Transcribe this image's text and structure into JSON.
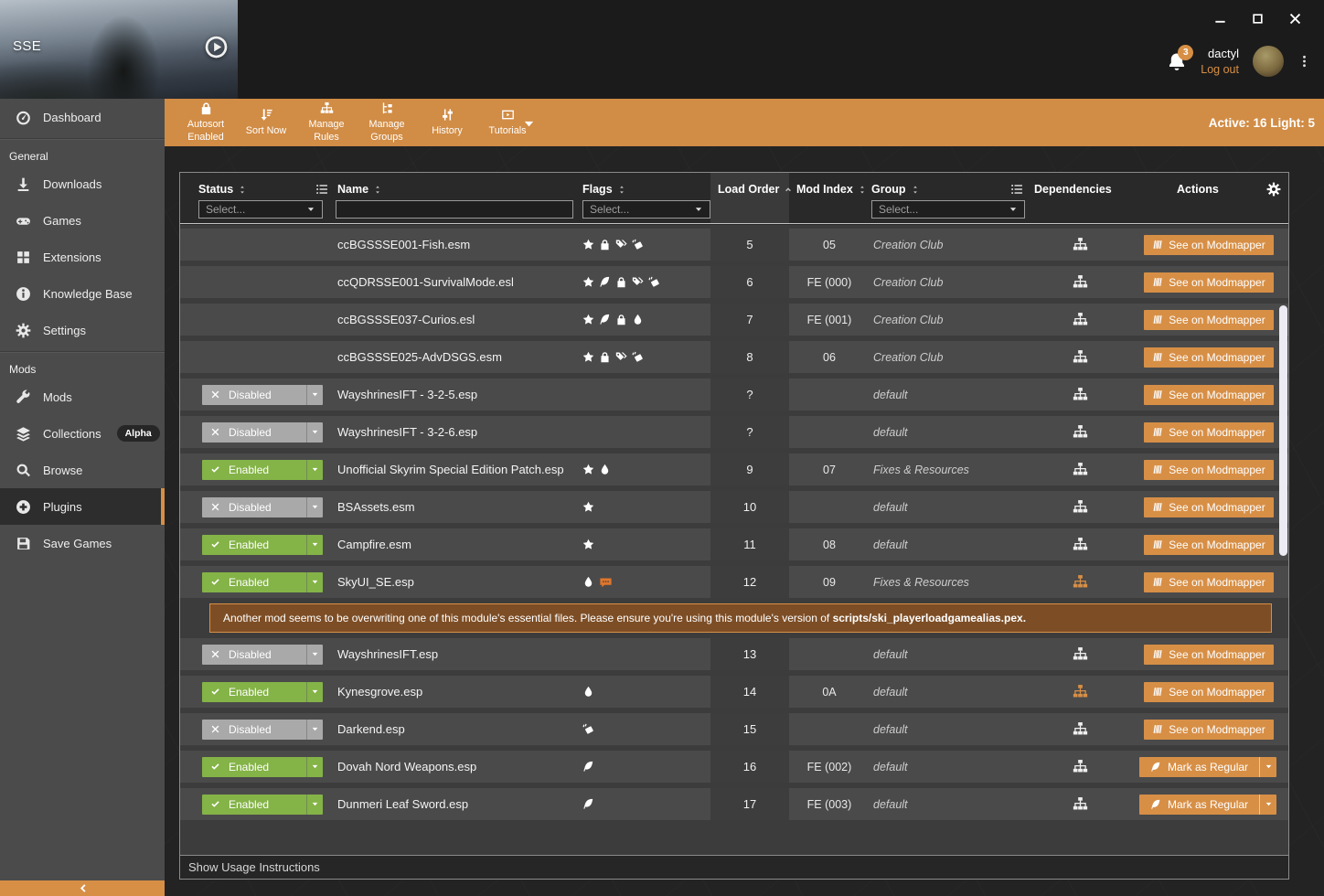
{
  "topbar": {
    "game_label": "SSE",
    "user_name": "dactyl",
    "logout_label": "Log out",
    "notification_count": "3",
    "window_controls": [
      "minimize-icon",
      "maximize-icon",
      "close-icon"
    ],
    "menu_icon": "kebab-menu-icon",
    "play_icon": "play-icon",
    "bell_icon": "bell-icon"
  },
  "toolbar": {
    "status_text": "Active: 16 Light: 5",
    "buttons": [
      {
        "icon": "lock-icon",
        "label": "Autosort Enabled",
        "caret": false
      },
      {
        "icon": "sort-amount-icon",
        "label": "Sort Now",
        "caret": false
      },
      {
        "icon": "sitemap-icon",
        "label": "Manage Rules",
        "caret": false
      },
      {
        "icon": "groups-icon",
        "label": "Manage Groups",
        "caret": false
      },
      {
        "icon": "sliders-icon",
        "label": "History",
        "caret": false
      },
      {
        "icon": "video-icon",
        "label": "Tutorials",
        "caret": true
      }
    ]
  },
  "sidebar": {
    "sections": [
      {
        "label": "",
        "items": [
          {
            "icon": "dashboard-icon",
            "label": "Dashboard",
            "active": false,
            "badge": ""
          }
        ]
      },
      {
        "label": "General",
        "items": [
          {
            "icon": "download-icon",
            "label": "Downloads",
            "active": false,
            "badge": ""
          },
          {
            "icon": "gamepad-icon",
            "label": "Games",
            "active": false,
            "badge": ""
          },
          {
            "icon": "extensions-icon",
            "label": "Extensions",
            "active": false,
            "badge": ""
          },
          {
            "icon": "info-icon",
            "label": "Knowledge Base",
            "active": false,
            "badge": ""
          },
          {
            "icon": "gear-icon",
            "label": "Settings",
            "active": false,
            "badge": ""
          }
        ]
      },
      {
        "label": "Mods",
        "items": [
          {
            "icon": "wrench-icon",
            "label": "Mods",
            "active": false,
            "badge": ""
          },
          {
            "icon": "layers-icon",
            "label": "Collections",
            "active": false,
            "badge": "Alpha"
          },
          {
            "icon": "search-icon",
            "label": "Browse",
            "active": false,
            "badge": ""
          },
          {
            "icon": "plus-circle-icon",
            "label": "Plugins",
            "active": true,
            "badge": ""
          },
          {
            "icon": "save-icon",
            "label": "Save Games",
            "active": false,
            "badge": ""
          }
        ]
      }
    ]
  },
  "table": {
    "headers": {
      "status": "Status",
      "name": "Name",
      "flags": "Flags",
      "load_order": "Load Order",
      "mod_index": "Mod Index",
      "group": "Group",
      "dependencies": "Dependencies",
      "actions": "Actions"
    },
    "filters": {
      "status_placeholder": "Select...",
      "name_value": "",
      "flags_placeholder": "Select...",
      "group_placeholder": "Select..."
    },
    "status_labels": {
      "enabled": "Enabled",
      "disabled": "Disabled"
    },
    "rows": [
      {
        "status": null,
        "name": "ccBGSSSE001-Fish.esm",
        "flags": [
          "star-icon",
          "lock-icon",
          "tags-icon",
          "eraser-icon"
        ],
        "load_order": "5",
        "mod_index": "05",
        "group": "Creation Club",
        "dep_highlight": false,
        "action": {
          "type": "modmapper",
          "label": "See on Modmapper"
        },
        "warning_after": false
      },
      {
        "status": null,
        "name": "ccQDRSSE001-SurvivalMode.esl",
        "flags": [
          "star-icon",
          "feather-icon",
          "lock-icon",
          "tags-icon",
          "eraser-icon"
        ],
        "load_order": "6",
        "mod_index": "FE (000)",
        "group": "Creation Club",
        "dep_highlight": false,
        "action": {
          "type": "modmapper",
          "label": "See on Modmapper"
        },
        "warning_after": false
      },
      {
        "status": null,
        "name": "ccBGSSSE037-Curios.esl",
        "flags": [
          "star-icon",
          "feather-icon",
          "lock-icon",
          "droplet-icon"
        ],
        "load_order": "7",
        "mod_index": "FE (001)",
        "group": "Creation Club",
        "dep_highlight": false,
        "action": {
          "type": "modmapper",
          "label": "See on Modmapper"
        },
        "warning_after": false
      },
      {
        "status": null,
        "name": "ccBGSSSE025-AdvDSGS.esm",
        "flags": [
          "star-icon",
          "lock-icon",
          "tags-icon",
          "eraser-icon"
        ],
        "load_order": "8",
        "mod_index": "06",
        "group": "Creation Club",
        "dep_highlight": false,
        "action": {
          "type": "modmapper",
          "label": "See on Modmapper"
        },
        "warning_after": false
      },
      {
        "status": "disabled",
        "name": "WayshrinesIFT - 3-2-5.esp",
        "flags": [],
        "load_order": "?",
        "mod_index": "",
        "group": "default",
        "dep_highlight": false,
        "action": {
          "type": "modmapper",
          "label": "See on Modmapper"
        },
        "warning_after": false
      },
      {
        "status": "disabled",
        "name": "WayshrinesIFT - 3-2-6.esp",
        "flags": [],
        "load_order": "?",
        "mod_index": "",
        "group": "default",
        "dep_highlight": false,
        "action": {
          "type": "modmapper",
          "label": "See on Modmapper"
        },
        "warning_after": false
      },
      {
        "status": "enabled",
        "name": "Unofficial Skyrim Special Edition Patch.esp",
        "flags": [
          "star-icon",
          "droplet-icon"
        ],
        "load_order": "9",
        "mod_index": "07",
        "group": "Fixes & Resources",
        "dep_highlight": false,
        "action": {
          "type": "modmapper",
          "label": "See on Modmapper"
        },
        "warning_after": false
      },
      {
        "status": "disabled",
        "name": "BSAssets.esm",
        "flags": [
          "star-icon"
        ],
        "load_order": "10",
        "mod_index": "",
        "group": "default",
        "dep_highlight": false,
        "action": {
          "type": "modmapper",
          "label": "See on Modmapper"
        },
        "warning_after": false
      },
      {
        "status": "enabled",
        "name": "Campfire.esm",
        "flags": [
          "star-icon"
        ],
        "load_order": "11",
        "mod_index": "08",
        "group": "default",
        "dep_highlight": false,
        "action": {
          "type": "modmapper",
          "label": "See on Modmapper"
        },
        "warning_after": false
      },
      {
        "status": "enabled",
        "name": "SkyUI_SE.esp",
        "flags": [
          "droplet-icon",
          "message-icon"
        ],
        "load_order": "12",
        "mod_index": "09",
        "group": "Fixes & Resources",
        "dep_highlight": true,
        "action": {
          "type": "modmapper",
          "label": "See on Modmapper"
        },
        "warning_after": true
      },
      {
        "status": "disabled",
        "name": "WayshrinesIFT.esp",
        "flags": [],
        "load_order": "13",
        "mod_index": "",
        "group": "default",
        "dep_highlight": false,
        "action": {
          "type": "modmapper",
          "label": "See on Modmapper"
        },
        "warning_after": false
      },
      {
        "status": "enabled",
        "name": "Kynesgrove.esp",
        "flags": [
          "droplet-icon"
        ],
        "load_order": "14",
        "mod_index": "0A",
        "group": "default",
        "dep_highlight": true,
        "action": {
          "type": "modmapper",
          "label": "See on Modmapper"
        },
        "warning_after": false
      },
      {
        "status": "disabled",
        "name": "Darkend.esp",
        "flags": [
          "eraser-icon"
        ],
        "load_order": "15",
        "mod_index": "",
        "group": "default",
        "dep_highlight": false,
        "action": {
          "type": "modmapper",
          "label": "See on Modmapper"
        },
        "warning_after": false
      },
      {
        "status": "enabled",
        "name": "Dovah Nord Weapons.esp",
        "flags": [
          "feather-icon"
        ],
        "load_order": "16",
        "mod_index": "FE (002)",
        "group": "default",
        "dep_highlight": false,
        "action": {
          "type": "mark_regular",
          "label": "Mark as Regular"
        },
        "warning_after": false
      },
      {
        "status": "enabled",
        "name": "Dunmeri Leaf Sword.esp",
        "flags": [
          "feather-icon"
        ],
        "load_order": "17",
        "mod_index": "FE (003)",
        "group": "default",
        "dep_highlight": false,
        "action": {
          "type": "mark_regular",
          "label": "Mark as Regular"
        },
        "warning_after": false
      }
    ],
    "warning": {
      "text": "Another mod seems to be overwriting one of this module's essential files. Please ensure you're using this module's version of ",
      "file": "scripts/ski_playerloadgamealias.pex",
      "suffix": "."
    },
    "footer_label": "Show Usage Instructions"
  },
  "colors": {
    "accent_orange": "#d78f46",
    "toolbar_orange": "#d18c45",
    "enabled_green": "#84b347",
    "disabled_gray": "#a9a9a9",
    "warning_bg": "#7d4e26",
    "message_icon_orange": "#e0752b",
    "row_bg": "#4a4a4a",
    "load_order_col_bg": "#3d3d3d"
  }
}
